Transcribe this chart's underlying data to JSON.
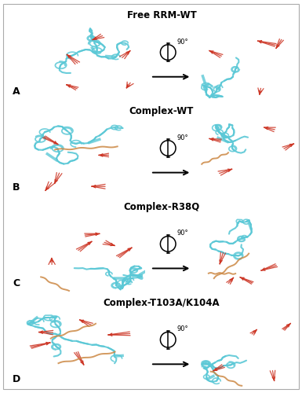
{
  "title_A": "Free RRM-WT",
  "title_B": "Complex-WT",
  "title_C": "Complex-R38Q",
  "title_D": "Complex-T103A/K104A",
  "label_A": "A",
  "label_B": "B",
  "label_C": "C",
  "label_D": "D",
  "background_color": "#ffffff",
  "tube_color_blue": "#5bc8d6",
  "cone_color_red": "#cc3322",
  "title_fontsize": 8.5,
  "label_fontsize": 9,
  "rotation_fontsize": 6,
  "fig_width": 3.85,
  "fig_height": 5.0,
  "dpi": 100
}
